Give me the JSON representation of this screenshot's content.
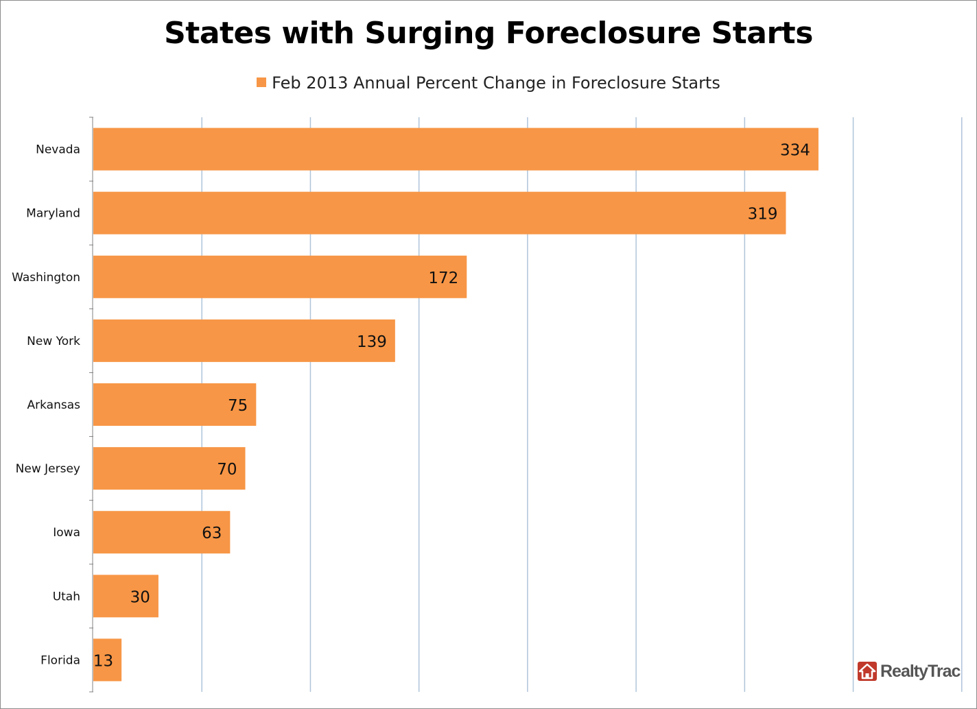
{
  "colors": {
    "bar": "#F79646",
    "grid": "#AFC4DA",
    "axis": "#808080",
    "logo_red": "#C0392B"
  },
  "chart_data": {
    "type": "bar",
    "orientation": "horizontal",
    "title": "States with Surging Foreclosure Starts",
    "legend_position": "top",
    "grid": true,
    "xlim": [
      0,
      400
    ],
    "x_tick_step": 50,
    "categories": [
      "Nevada",
      "Maryland",
      "Washington",
      "New York",
      "Arkansas",
      "New Jersey",
      "Iowa",
      "Utah",
      "Florida"
    ],
    "series": [
      {
        "name": "Feb 2013 Annual Percent Change in Foreclosure Starts",
        "values": [
          334,
          319,
          172,
          139,
          75,
          70,
          63,
          30,
          13
        ]
      }
    ]
  },
  "logo": {
    "text": "RealtyTrac",
    "icon": "house-icon"
  }
}
